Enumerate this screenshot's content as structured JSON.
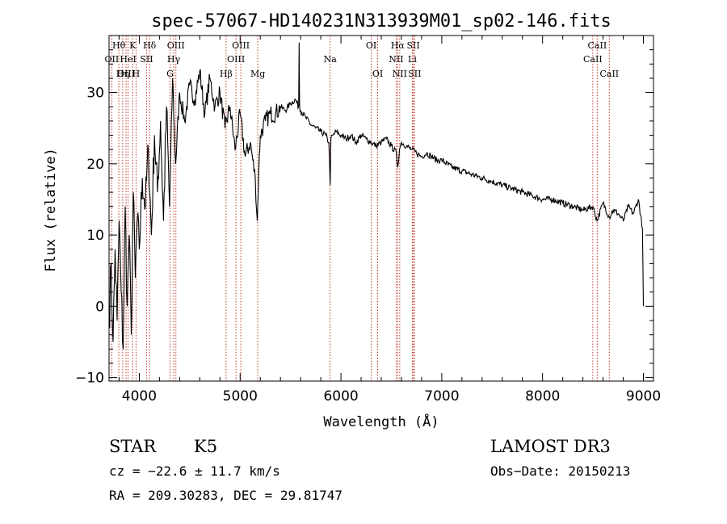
{
  "chart_data": {
    "type": "line",
    "title": "spec-57067-HD140231N313939M01_sp02-146.fits",
    "xlabel": "Wavelength (Å)",
    "ylabel": "Flux (relative)",
    "xlim": [
      3700,
      9100
    ],
    "ylim": [
      -10.5,
      38
    ],
    "xticks": [
      4000,
      5000,
      6000,
      7000,
      8000,
      9000
    ],
    "yticks": [
      -10,
      0,
      10,
      20,
      30
    ],
    "grid": false,
    "series": [
      {
        "color": "#000000",
        "x": [
          3700,
          3720,
          3740,
          3760,
          3780,
          3800,
          3820,
          3840,
          3860,
          3880,
          3900,
          3920,
          3940,
          3960,
          3980,
          4000,
          4030,
          4060,
          4090,
          4120,
          4150,
          4180,
          4210,
          4240,
          4270,
          4300,
          4330,
          4360,
          4400,
          4450,
          4500,
          4550,
          4600,
          4650,
          4700,
          4750,
          4800,
          4850,
          4900,
          4950,
          5000,
          5050,
          5100,
          5150,
          5170,
          5185,
          5200,
          5250,
          5300,
          5350,
          5400,
          5450,
          5500,
          5550,
          5580,
          5585,
          5590,
          5600,
          5650,
          5700,
          5750,
          5800,
          5850,
          5880,
          5893,
          5900,
          5950,
          6000,
          6050,
          6100,
          6150,
          6200,
          6250,
          6300,
          6350,
          6400,
          6450,
          6500,
          6550,
          6563,
          6580,
          6600,
          6650,
          6700,
          6750,
          6800,
          6850,
          6900,
          6950,
          7000,
          7100,
          7200,
          7300,
          7400,
          7500,
          7600,
          7700,
          7800,
          7900,
          8000,
          8100,
          8200,
          8300,
          8400,
          8500,
          8540,
          8600,
          8662,
          8700,
          8750,
          8800,
          8850,
          8900,
          8950,
          8990,
          9000
        ],
        "values": [
          -3,
          6,
          -5,
          8,
          -2,
          12,
          2,
          -6,
          14,
          0,
          10,
          -4,
          16,
          4,
          12,
          8,
          18,
          14,
          22,
          10,
          24,
          16,
          26,
          12,
          28,
          14,
          32,
          20,
          30,
          26,
          31,
          29,
          33,
          27,
          32,
          28,
          30,
          25,
          28,
          22,
          27,
          21,
          23,
          18,
          12,
          19,
          24,
          26,
          27,
          27,
          28,
          27.5,
          28.5,
          29,
          28,
          37,
          28,
          27.5,
          26.5,
          25.5,
          25,
          24.5,
          24,
          23,
          17,
          23.5,
          24.5,
          24,
          23.5,
          24,
          23,
          24,
          23.5,
          23,
          22.5,
          23,
          23.5,
          22.5,
          21.5,
          19.5,
          22,
          23,
          22.5,
          22,
          21.5,
          21,
          21.5,
          21,
          20.5,
          20.5,
          19.5,
          19,
          18.5,
          18,
          17.5,
          17,
          16.5,
          16,
          15.5,
          15,
          15,
          14.5,
          14,
          13.5,
          14,
          12,
          14.5,
          12.5,
          13.5,
          13,
          12,
          14,
          13,
          15,
          11,
          0
        ]
      }
    ],
    "lines": [
      {
        "label": "Hθ",
        "x": 3797,
        "row": 0
      },
      {
        "label": "K",
        "x": 3934,
        "row": 0
      },
      {
        "label": "Hδ",
        "x": 4102,
        "row": 0
      },
      {
        "label": "OIII",
        "x": 4363,
        "row": 0
      },
      {
        "label": "OIII",
        "x": 5007,
        "row": 0
      },
      {
        "label": "OI",
        "x": 6300,
        "row": 0
      },
      {
        "label": "Hα",
        "x": 6563,
        "row": 0
      },
      {
        "label": "SII",
        "x": 6717,
        "row": 0
      },
      {
        "label": "CaII",
        "x": 8542,
        "row": 0
      },
      {
        "label": "OII",
        "x": 3727,
        "row": 1
      },
      {
        "label": "HeI",
        "x": 3889,
        "row": 1
      },
      {
        "label": "SII",
        "x": 4072,
        "row": 1
      },
      {
        "label": "Hγ",
        "x": 4341,
        "row": 1
      },
      {
        "label": "OIII",
        "x": 4959,
        "row": 1
      },
      {
        "label": "Na",
        "x": 5893,
        "row": 1
      },
      {
        "label": "NII",
        "x": 6548,
        "row": 1
      },
      {
        "label": "Li",
        "x": 6708,
        "row": 1
      },
      {
        "label": "CaII",
        "x": 8498,
        "row": 1
      },
      {
        "label": "OIII",
        "x": 3869,
        "row": 2
      },
      {
        "label": "Hη",
        "x": 3835,
        "row": 2
      },
      {
        "label": "H",
        "x": 3968,
        "row": 2
      },
      {
        "label": "G",
        "x": 4305,
        "row": 2
      },
      {
        "label": "Hβ",
        "x": 4861,
        "row": 2
      },
      {
        "label": "Mg",
        "x": 5175,
        "row": 2
      },
      {
        "label": "OI",
        "x": 6364,
        "row": 2
      },
      {
        "label": "NII",
        "x": 6583,
        "row": 2
      },
      {
        "label": "SII",
        "x": 6731,
        "row": 2
      },
      {
        "label": "CaII",
        "x": 8662,
        "row": 2
      }
    ]
  },
  "info": {
    "type": "STAR",
    "subclass": "K5",
    "survey": "LAMOST DR3",
    "cz": "cz = −22.6 ± 11.7 km/s",
    "obs_date": "Obs−Date: 20150213",
    "coords": "RA = 209.30283, DEC =  29.81747"
  }
}
